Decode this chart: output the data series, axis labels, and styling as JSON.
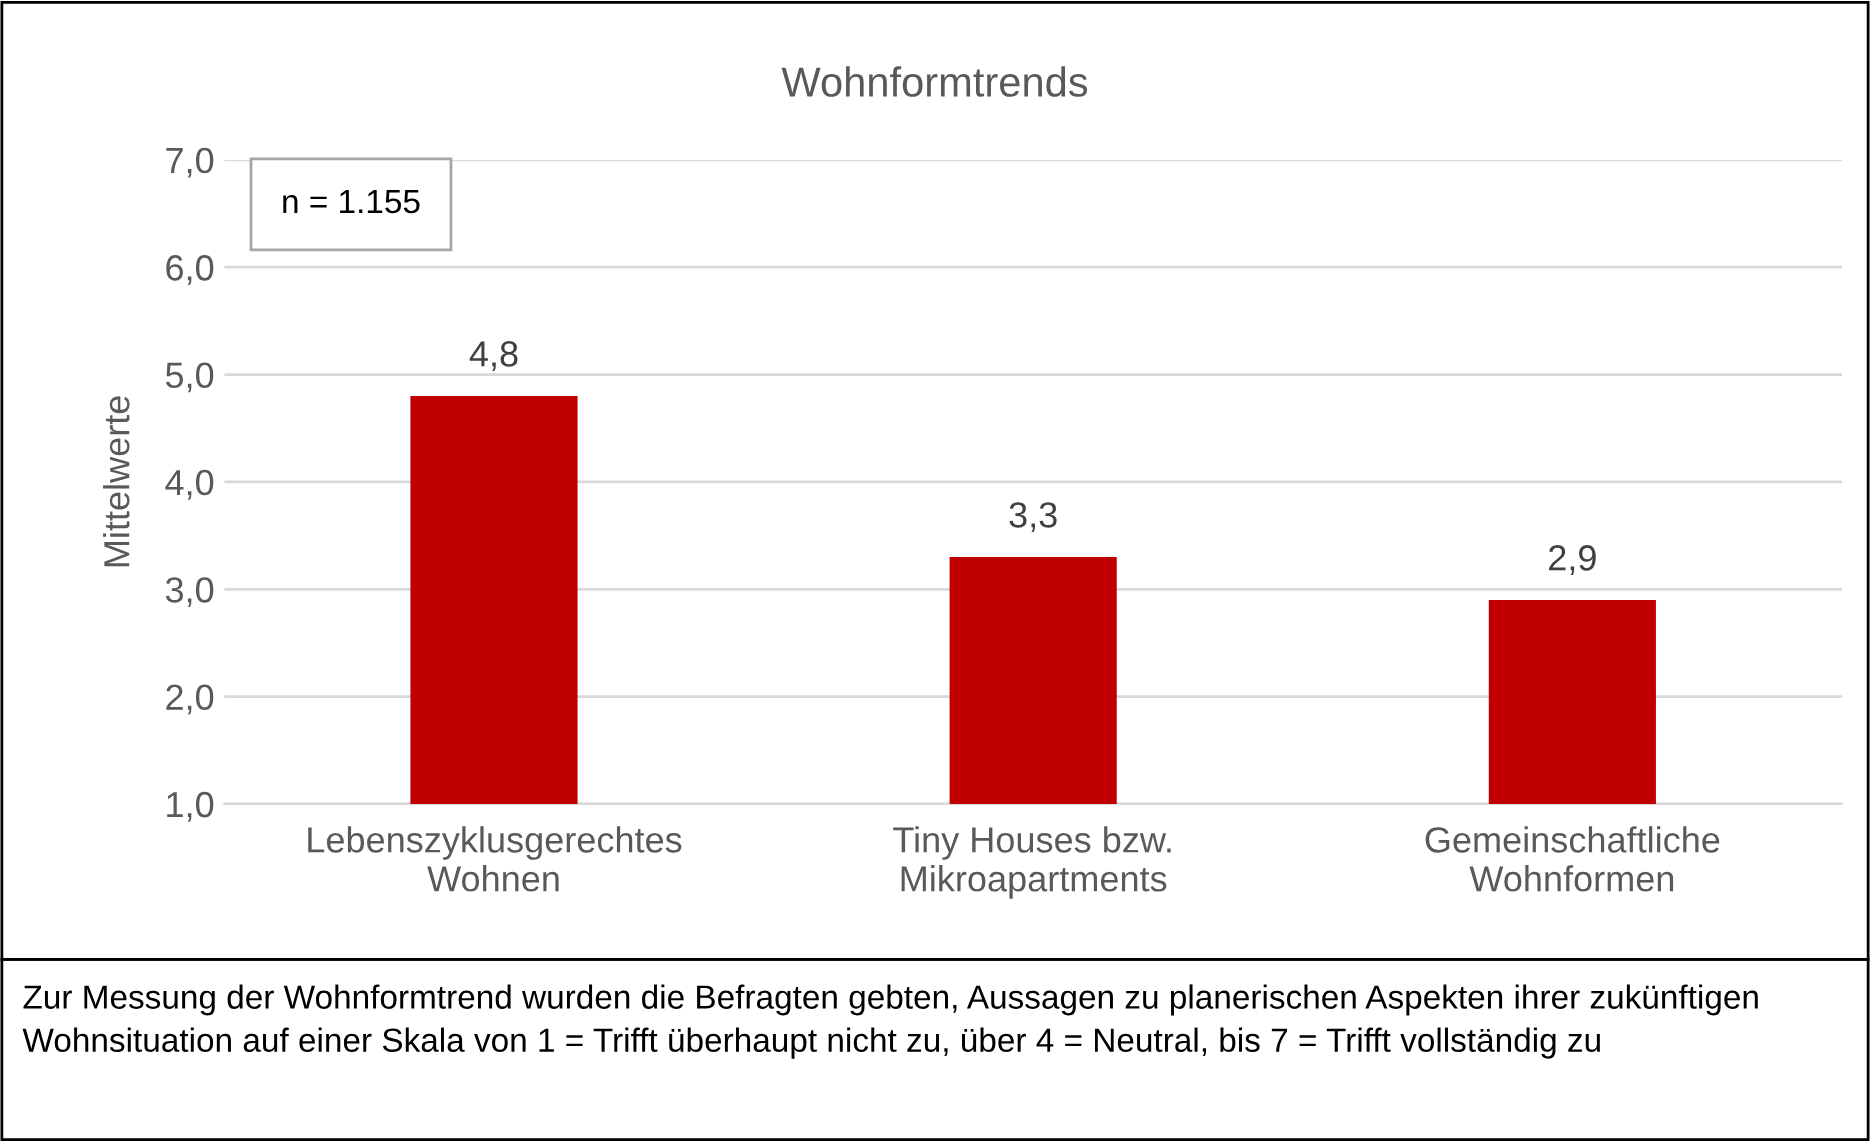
{
  "chart_data": {
    "type": "bar",
    "title": "Wohnformtrends",
    "ylabel": "Mittelwerte",
    "categories": [
      "Lebenszyklusgerechtes\nWohnen",
      "Tiny Houses bzw.\nMikroapartments",
      "Gemeinschaftliche\nWohnformen"
    ],
    "values": [
      4.8,
      3.3,
      2.9
    ],
    "color": "#c00000",
    "value_labels": [
      "4,8",
      "3,3",
      "2,9"
    ],
    "ylim": [
      1,
      7
    ],
    "yticks": [
      {
        "value": 1,
        "label": "1,0"
      },
      {
        "value": 2,
        "label": "2,0"
      },
      {
        "value": 3,
        "label": "3,0"
      },
      {
        "value": 4,
        "label": "4,0"
      },
      {
        "value": 5,
        "label": "5,0"
      },
      {
        "value": 6,
        "label": "6,0"
      },
      {
        "value": 7,
        "label": "7,0"
      }
    ],
    "grid": "y",
    "legend": false,
    "annotations": [
      "n = 1.155",
      "Zur Messung der Wohnformtrend wurden die Befragten gebten, Aussagen zu planerischen Aspekten ihrer zukünftigen Wohnsituation auf einer Skala von 1 = Trifft überhaupt nicht zu, über 4 = Neutral, bis 7 = Trifft vollständig zu"
    ]
  }
}
